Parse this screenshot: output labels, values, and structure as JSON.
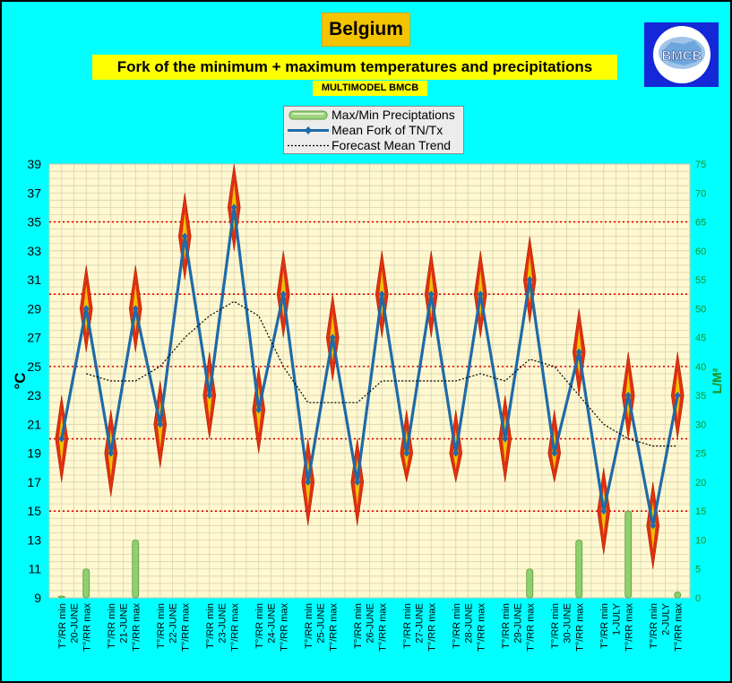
{
  "header": {
    "title": "Belgium",
    "subtitle": "Fork of the minimum + maximum temperatures and precipitations",
    "source": "MULTIMODEL BMCB",
    "logo_text": "BMCB"
  },
  "legend": {
    "items": [
      {
        "label": "Max/Min Preciptations",
        "symbol": "precip-bar-icon"
      },
      {
        "label": "Mean Fork of TN/Tx",
        "symbol": "line-diamond-icon"
      },
      {
        "label": "Forecast Mean Trend",
        "symbol": "dotted-line-icon"
      }
    ]
  },
  "colors": {
    "background": "#00ffff",
    "plot": "#fff8d0",
    "line": "#1f6aa8",
    "fork_red": "#e03010",
    "fork_yellow": "#f0c000",
    "precip": "#8fcf6f",
    "trend": "#000000",
    "refline": "#e00000",
    "right_axis": "#1f8f1f"
  },
  "chart_data": {
    "type": "line",
    "ylabel": "°C",
    "y2label": "L/M²",
    "ylim": [
      9,
      39
    ],
    "y2lim": [
      0,
      75
    ],
    "yticks": [
      9,
      11,
      13,
      15,
      17,
      19,
      21,
      23,
      25,
      27,
      29,
      31,
      33,
      35,
      37,
      39
    ],
    "y2ticks": [
      0,
      5,
      10,
      15,
      20,
      25,
      30,
      35,
      40,
      45,
      50,
      55,
      60,
      65,
      70,
      75
    ],
    "reference_lines_celsius": [
      35,
      30,
      25,
      20,
      15
    ],
    "x_labels": [
      [
        "T°/RR min",
        "20-JUNE",
        "T°/RR max"
      ],
      [
        "T°/RR min",
        "21-JUNE",
        "T°/RR max"
      ],
      [
        "T°/RR min",
        "22-JUNE",
        "T°/RR max"
      ],
      [
        "T°/RR min",
        "23-JUNE",
        "T°/RR max"
      ],
      [
        "T°/RR min",
        "24-JUNE",
        "T°/RR max"
      ],
      [
        "T°/RR min",
        "25-JUNE",
        "T°/RR max"
      ],
      [
        "T°/RR min",
        "26-JUNE",
        "T°/RR max"
      ],
      [
        "T°/RR min",
        "27-JUNE",
        "T°/RR max"
      ],
      [
        "T°/RR min",
        "28-JUNE",
        "T°/RR max"
      ],
      [
        "T°/RR min",
        "29-JUNE",
        "T°/RR max"
      ],
      [
        "T°/RR min",
        "30-JUNE",
        "T°/RR max"
      ],
      [
        "T°/RR min",
        "1-JULY",
        "T°/RR max"
      ],
      [
        "T°/RR min",
        "2-JULY",
        "T°/RR max"
      ]
    ],
    "series": [
      {
        "name": "Mean Fork of TN/Tx",
        "values": [
          20,
          29,
          19,
          29,
          21,
          34,
          23,
          36,
          22,
          30,
          17,
          27,
          17,
          30,
          19,
          30,
          19,
          30,
          20,
          31,
          19,
          26,
          15,
          23,
          14,
          23
        ]
      },
      {
        "name": "Fork low bound",
        "values": [
          17,
          26,
          16,
          26,
          18,
          31,
          20,
          33,
          19,
          27,
          14,
          24,
          14,
          27,
          17,
          27,
          17,
          27,
          17,
          28,
          17,
          23,
          12,
          20,
          11,
          20
        ]
      },
      {
        "name": "Fork high bound",
        "values": [
          23,
          32,
          22,
          32,
          24,
          37,
          26,
          39,
          25,
          33,
          20,
          30,
          20,
          33,
          22,
          33,
          22,
          33,
          23,
          34,
          22,
          29,
          18,
          26,
          17,
          26
        ]
      },
      {
        "name": "Forecast Mean Trend",
        "values": [
          null,
          24.5,
          24.0,
          24.0,
          25.0,
          27.0,
          28.5,
          29.5,
          28.5,
          25.0,
          22.5,
          22.5,
          22.5,
          24.0,
          24.0,
          24.0,
          24.0,
          24.5,
          24.0,
          25.5,
          25.0,
          23.0,
          21.0,
          20.0,
          19.5,
          19.5
        ]
      },
      {
        "name": "Max/Min Preciptations",
        "axis": "right",
        "values": [
          0.3,
          5,
          0,
          10,
          0,
          0,
          0,
          0,
          0,
          0,
          0,
          0,
          0,
          0,
          0,
          0,
          0,
          0,
          0,
          5,
          0,
          10,
          0,
          15,
          0,
          1
        ]
      }
    ]
  }
}
